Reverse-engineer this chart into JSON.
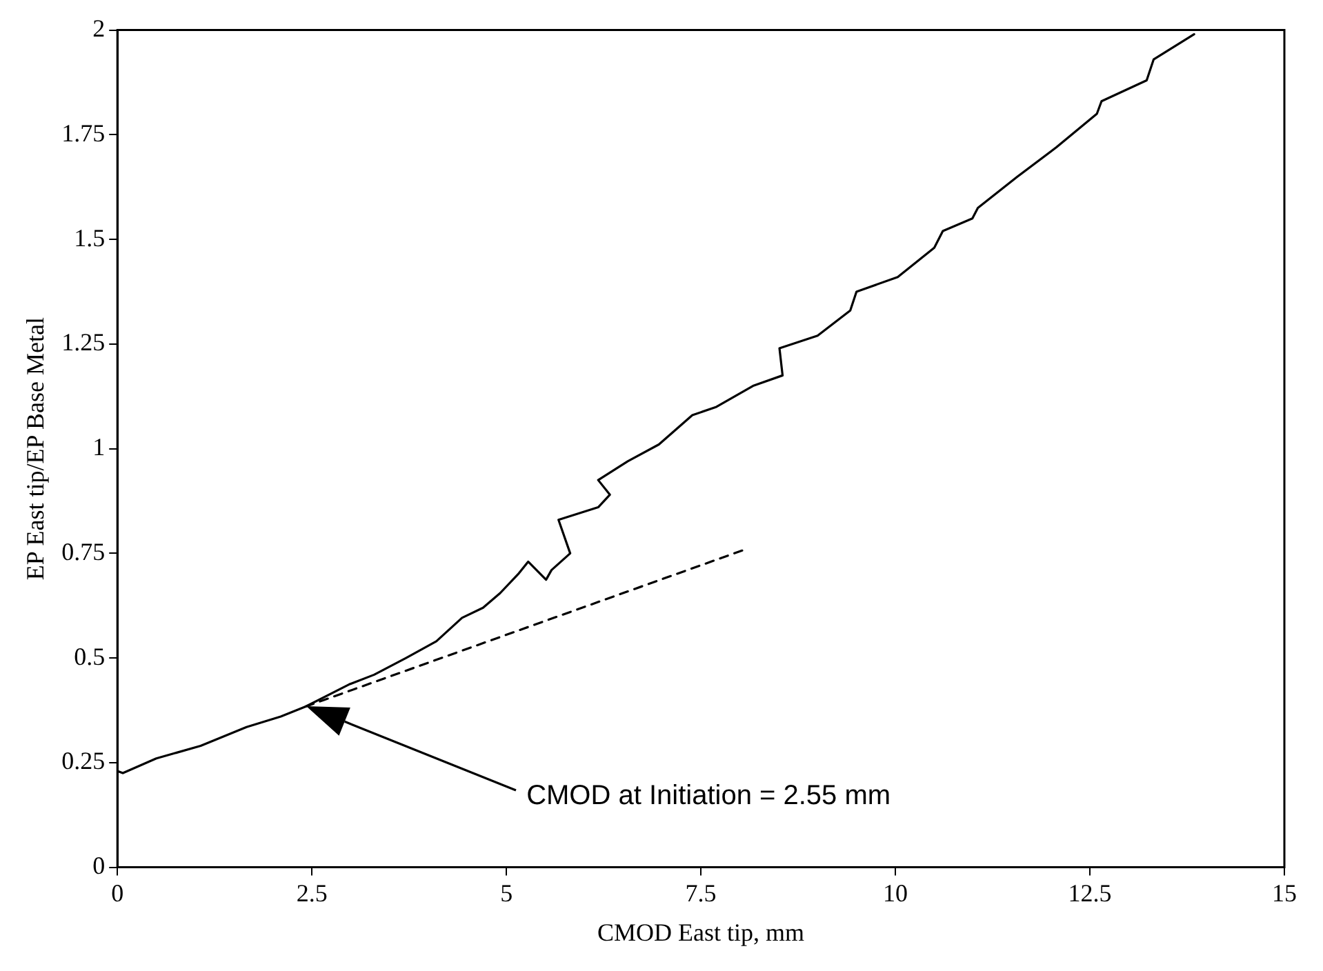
{
  "chart_data": {
    "type": "line",
    "xlabel": "CMOD East tip, mm",
    "ylabel": "EP East tip/EP Base Metal",
    "xlim": [
      0,
      15
    ],
    "xticks": [
      0,
      2.5,
      5,
      7.5,
      10,
      12.5,
      15
    ],
    "ylim": [
      0,
      2
    ],
    "yticks": [
      0,
      0.25,
      0.5,
      0.75,
      1,
      1.25,
      1.5,
      1.75,
      2
    ],
    "grid": false,
    "legend": false,
    "marker": "none",
    "series": [
      {
        "color": "#000000",
        "line_style": "solid",
        "x": [
          0,
          0.07,
          0.5,
          1.07,
          1.66,
          2.1,
          2.42,
          2.98,
          3.3,
          3.71,
          4.1,
          4.43,
          4.7,
          4.92,
          5.15,
          5.28,
          5.51,
          5.58,
          5.82,
          5.67,
          6.18,
          6.33,
          6.18,
          6.56,
          6.96,
          7.39,
          7.7,
          8.17,
          8.55,
          8.51,
          9.0,
          9.42,
          9.5,
          10.03,
          10.5,
          10.61,
          10.99,
          11.06,
          11.57,
          12.07,
          12.59,
          12.65,
          13.23,
          13.32,
          13.84
        ],
        "values": [
          0.23,
          0.225,
          0.26,
          0.29,
          0.335,
          0.36,
          0.384,
          0.437,
          0.46,
          0.5,
          0.54,
          0.596,
          0.62,
          0.655,
          0.7,
          0.73,
          0.687,
          0.71,
          0.75,
          0.83,
          0.86,
          0.89,
          0.925,
          0.97,
          1.01,
          1.08,
          1.1,
          1.15,
          1.175,
          1.24,
          1.27,
          1.33,
          1.375,
          1.41,
          1.48,
          1.52,
          1.55,
          1.575,
          1.65,
          1.72,
          1.8,
          1.83,
          1.88,
          1.93,
          1.99
        ]
      },
      {
        "color": "#000000",
        "line_style": "dashed",
        "x": [
          2.42,
          8.08
        ],
        "values": [
          0.384,
          0.76
        ]
      }
    ],
    "annotations": [
      "CMOD at Initiation = 2.55 mm"
    ]
  }
}
